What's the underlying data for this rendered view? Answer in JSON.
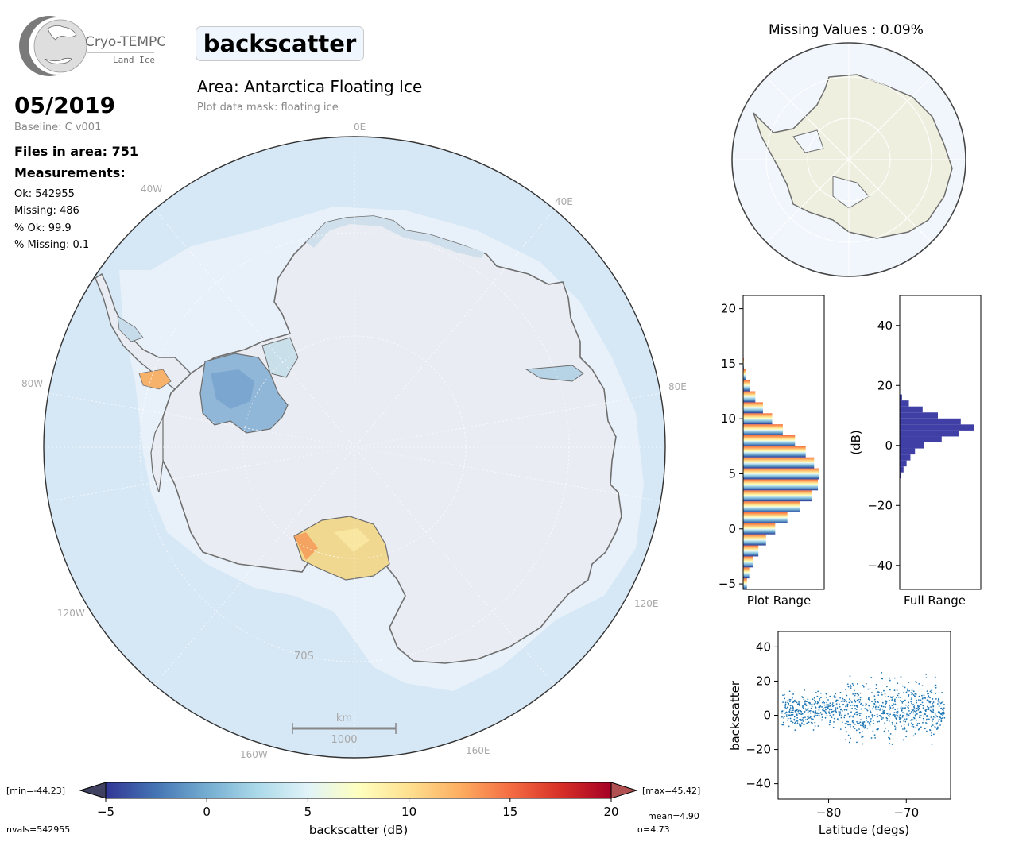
{
  "logo": {
    "name": "Cryo-TEMPO",
    "subtitle": "Land Ice"
  },
  "parameter": "backscatter",
  "area_title": "Area: Antarctica Floating Ice",
  "mask_text": "Plot data mask: floating ice",
  "date": "05/2019",
  "baseline": "Baseline: C v001",
  "files_in_area": "Files in area: 751",
  "measurements_heading": "Measurements:",
  "stats": {
    "ok": "Ok: 542955",
    "missing": "Missing: 486",
    "pct_ok": "% Ok: 99.9",
    "pct_missing": "% Missing: 0.1"
  },
  "map": {
    "lon_labels": [
      "0E",
      "40E",
      "80E",
      "120E",
      "160E",
      "160W",
      "120W",
      "80W",
      "40W"
    ],
    "lat_label": "70S",
    "scalebar": {
      "unit": "km",
      "length_label": "1000"
    },
    "colors": {
      "ocean": "#d6e7f5",
      "ice": "#e9ecf2",
      "coast": "#6e6e6e"
    }
  },
  "missing_values": "Missing Values : 0.09%",
  "colorbar": {
    "min_label": "[min=-44.23]",
    "max_label": "[max=45.42]",
    "ticks": [
      "−5",
      "0",
      "5",
      "10",
      "15",
      "20"
    ],
    "label": "backscatter (dB)",
    "nvals": "nvals=542955",
    "mean": "mean=4.90",
    "sigma": "σ=4.73",
    "cmap": "RdYlBu_r"
  },
  "chart_data": [
    {
      "type": "bar",
      "orientation": "horizontal",
      "xlabel": "Plot Range",
      "ylim": [
        -5.5,
        21.2
      ],
      "yticks": [
        "−5",
        "0",
        "5",
        "10",
        "15",
        "20"
      ],
      "y_values": [
        -5,
        -4,
        -3,
        -2,
        -1,
        0,
        1,
        2,
        3,
        4,
        5,
        6,
        7,
        8,
        9,
        10,
        11,
        12,
        13,
        14,
        15
      ],
      "values": [
        0.05,
        0.08,
        0.13,
        0.2,
        0.3,
        0.42,
        0.58,
        0.75,
        0.9,
        0.98,
        1.0,
        0.93,
        0.82,
        0.68,
        0.52,
        0.38,
        0.26,
        0.16,
        0.09,
        0.04,
        0.01
      ]
    },
    {
      "type": "bar",
      "orientation": "horizontal",
      "xlabel": "Full Range",
      "ylabel": "(dB)",
      "ylim": [
        -48,
        50
      ],
      "yticks": [
        "40",
        "20",
        "0",
        "−20",
        "−40"
      ],
      "y_values": [
        -10,
        -8,
        -6,
        -4,
        -2,
        0,
        2,
        4,
        6,
        8,
        10,
        12,
        14,
        16
      ],
      "values": [
        0.02,
        0.05,
        0.09,
        0.14,
        0.2,
        0.32,
        0.55,
        0.78,
        0.97,
        0.8,
        0.5,
        0.3,
        0.12,
        0.03
      ],
      "color": "#3f3fa5"
    },
    {
      "type": "scatter",
      "xlabel": "Latitude (degs)",
      "ylabel": "backscatter",
      "xlim": [
        -86.5,
        -64.3
      ],
      "ylim": [
        -49,
        49
      ],
      "xticks": [
        "−80",
        "−70"
      ],
      "yticks": [
        "40",
        "20",
        "0",
        "−20",
        "−40"
      ],
      "color": "#1f77b4"
    }
  ]
}
